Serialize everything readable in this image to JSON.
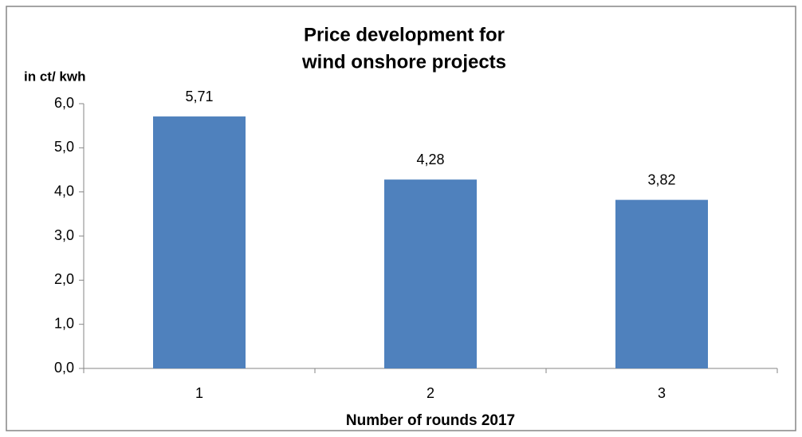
{
  "chart_data": {
    "type": "bar",
    "title": [
      "Price development for",
      "wind onshore projects"
    ],
    "y_label": "in ct/ kwh",
    "x_label": "Number of rounds 2017",
    "categories": [
      "1",
      "2",
      "3"
    ],
    "values": [
      5.71,
      4.28,
      3.82
    ],
    "value_labels": [
      "5,71",
      "4,28",
      "3,82"
    ],
    "color": "#4f81bd",
    "ylim": [
      0,
      6
    ],
    "yticks": [
      {
        "value": 0,
        "label": "0,0"
      },
      {
        "value": 1,
        "label": "1,0"
      },
      {
        "value": 2,
        "label": "2,0"
      },
      {
        "value": 3,
        "label": "3,0"
      },
      {
        "value": 4,
        "label": "4,0"
      },
      {
        "value": 5,
        "label": "5,0"
      },
      {
        "value": 6,
        "label": "6,0"
      }
    ],
    "grid": false
  }
}
